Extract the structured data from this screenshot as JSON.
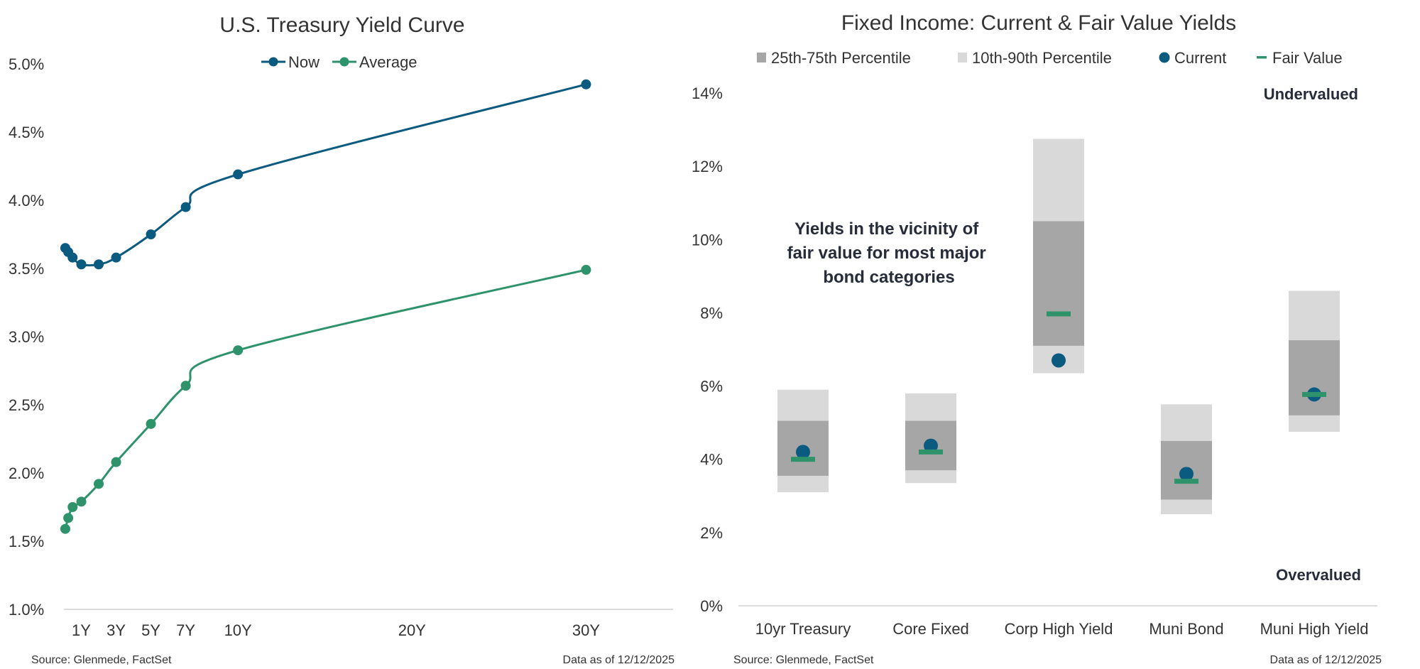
{
  "chart_data": [
    {
      "type": "line",
      "title": "U.S. Treasury Yield Curve",
      "x_ticks": [
        {
          "label": "1Y",
          "x": 1
        },
        {
          "label": "3Y",
          "x": 3
        },
        {
          "label": "5Y",
          "x": 5
        },
        {
          "label": "7Y",
          "x": 7
        },
        {
          "label": "10Y",
          "x": 10
        },
        {
          "label": "20Y",
          "x": 20
        },
        {
          "label": "30Y",
          "x": 30
        }
      ],
      "xlim": [
        0,
        35
      ],
      "y_ticks": [
        "1.0%",
        "1.5%",
        "2.0%",
        "2.5%",
        "3.0%",
        "3.5%",
        "4.0%",
        "4.5%",
        "5.0%"
      ],
      "ylim": [
        1.0,
        5.0
      ],
      "legend": "top-center",
      "source": "Source: Glenmede, FactSet",
      "date_note": "Data as of 12/12/2025",
      "series": [
        {
          "name": "Now",
          "color": "#0b5a80",
          "x": [
            0.08,
            0.25,
            0.5,
            1,
            2,
            3,
            5,
            7,
            10,
            30
          ],
          "values": [
            3.65,
            3.62,
            3.58,
            3.53,
            3.53,
            3.58,
            3.75,
            3.95,
            4.19,
            4.85
          ]
        },
        {
          "name": "Average",
          "color": "#2e936b",
          "x": [
            0.08,
            0.25,
            0.5,
            1,
            2,
            3,
            5,
            7,
            10,
            30
          ],
          "values": [
            1.59,
            1.67,
            1.75,
            1.79,
            1.92,
            2.08,
            2.36,
            2.64,
            2.9,
            3.49
          ]
        }
      ]
    },
    {
      "type": "range",
      "title": "Fixed Income: Current & Fair Value Yields",
      "categories": [
        "10yr Treasury",
        "Core Fixed",
        "Corp High Yield",
        "Muni Bond",
        "Muni High Yield"
      ],
      "y_ticks": [
        "0%",
        "2%",
        "4%",
        "6%",
        "8%",
        "10%",
        "12%",
        "14%"
      ],
      "ylim": [
        0,
        14
      ],
      "legend": "top",
      "legend_labels": {
        "iqr": "25th-75th Percentile",
        "p1090": "10th-90th Percentile",
        "current": "Current",
        "fair": "Fair Value"
      },
      "colors": {
        "iqr": "#a6a6a6",
        "p1090": "#d9d9d9",
        "current": "#0b5a80",
        "fair": "#2e936b"
      },
      "p10": [
        3.1,
        3.35,
        6.35,
        2.5,
        4.75
      ],
      "p25": [
        3.55,
        3.7,
        7.1,
        2.9,
        5.2
      ],
      "p75": [
        5.05,
        5.05,
        10.5,
        4.5,
        7.25
      ],
      "p90": [
        5.9,
        5.8,
        12.75,
        5.5,
        8.6
      ],
      "current": [
        4.2,
        4.37,
        6.7,
        3.6,
        5.77
      ],
      "fair_value": [
        4.0,
        4.2,
        7.97,
        3.4,
        5.77
      ],
      "annotation": [
        "Yields in the vicinity of",
        "fair value for most major",
        "bond categories"
      ],
      "top_label": "Undervalued",
      "bottom_label": "Overvalued",
      "source": "Source: Glenmede, FactSet",
      "date_note": "Data as of 12/12/2025"
    }
  ]
}
